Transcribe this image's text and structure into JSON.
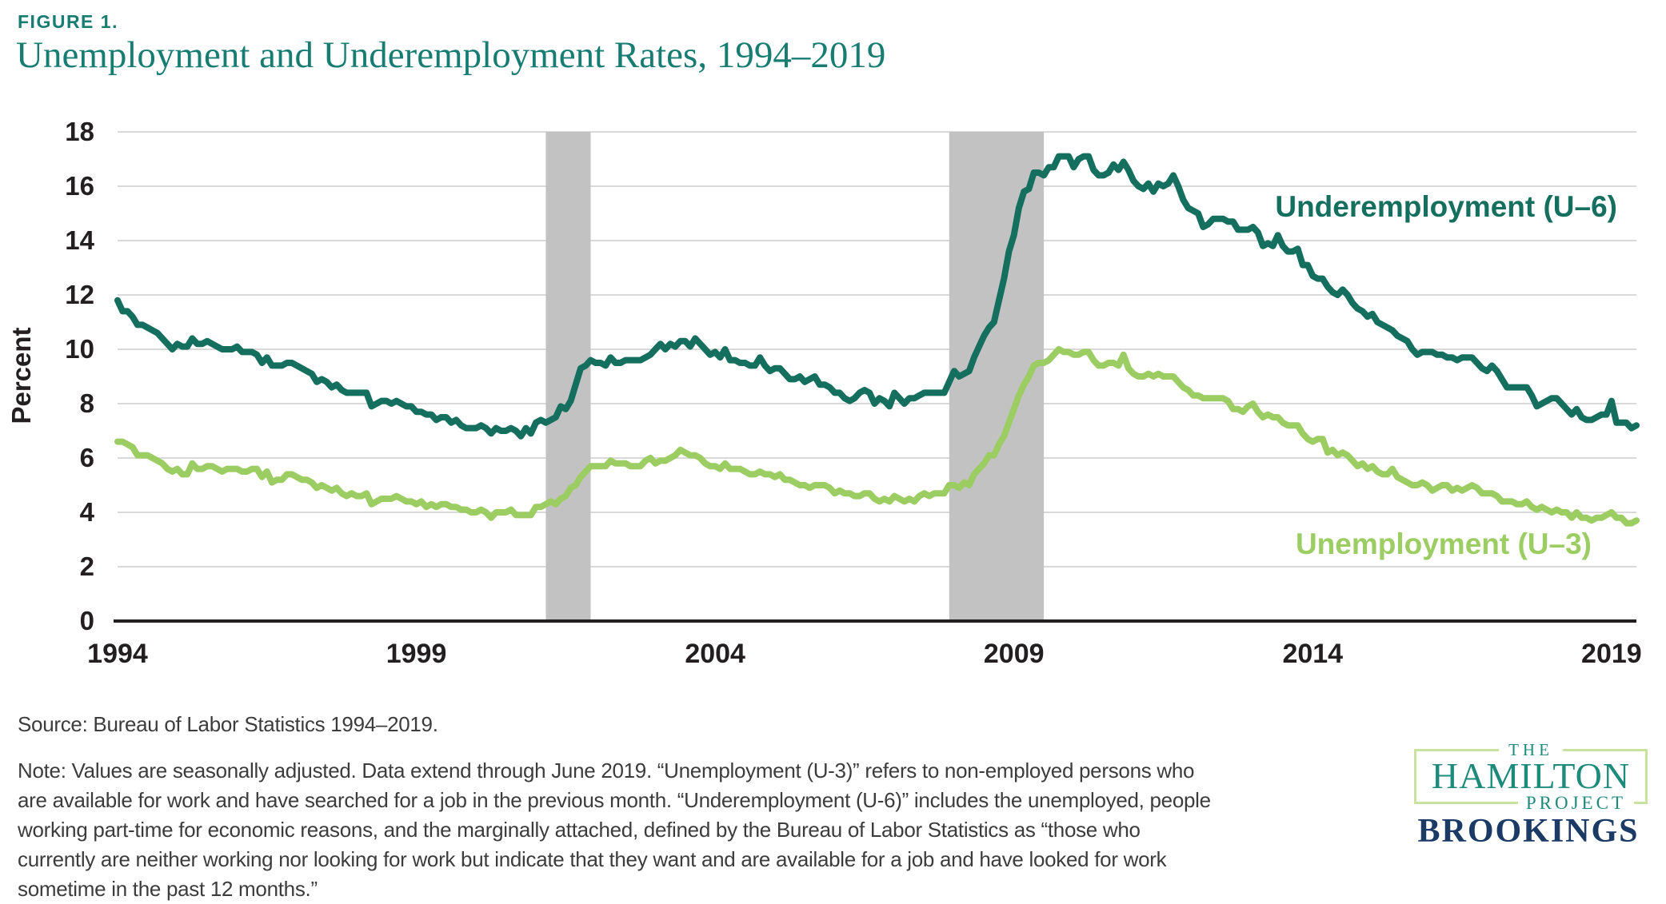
{
  "figure_label": "FIGURE 1.",
  "title": "Unemployment and Underemployment Rates, 1994–2019",
  "chart_data": {
    "type": "line",
    "title": "Unemployment and Underemployment Rates, 1994–2019",
    "xlabel": "",
    "ylabel": "Percent",
    "ylim": [
      0,
      18
    ],
    "yticks": [
      0,
      2,
      4,
      6,
      8,
      10,
      12,
      14,
      16,
      18
    ],
    "xticks": [
      1994,
      1999,
      2004,
      2009,
      2014,
      2019
    ],
    "x_unit": "monthly",
    "x_range": [
      "1994-01",
      "2019-06"
    ],
    "grid": "horizontal",
    "legend_position": "inline-labels-right",
    "recession_shading": true,
    "recessions": [
      {
        "start": "2001-03",
        "end": "2001-11"
      },
      {
        "start": "2007-12",
        "end": "2009-06"
      }
    ],
    "series": [
      {
        "name": "Underemployment (U–6)",
        "color": "#156f5e",
        "values": [
          11.8,
          11.4,
          11.4,
          11.2,
          10.9,
          10.9,
          10.8,
          10.7,
          10.6,
          10.4,
          10.2,
          10.0,
          10.2,
          10.1,
          10.1,
          10.4,
          10.2,
          10.2,
          10.3,
          10.2,
          10.1,
          10.0,
          10.0,
          10.0,
          10.1,
          9.9,
          9.9,
          9.9,
          9.8,
          9.5,
          9.7,
          9.4,
          9.4,
          9.4,
          9.5,
          9.5,
          9.4,
          9.3,
          9.2,
          9.1,
          8.8,
          8.9,
          8.8,
          8.6,
          8.7,
          8.5,
          8.4,
          8.4,
          8.4,
          8.4,
          8.4,
          7.9,
          8.0,
          8.1,
          8.1,
          8.0,
          8.1,
          8.0,
          7.9,
          7.9,
          7.7,
          7.7,
          7.6,
          7.6,
          7.4,
          7.5,
          7.5,
          7.3,
          7.4,
          7.2,
          7.1,
          7.1,
          7.1,
          7.2,
          7.1,
          6.9,
          7.1,
          7.0,
          7.0,
          7.1,
          7.0,
          6.8,
          7.1,
          6.9,
          7.3,
          7.4,
          7.3,
          7.4,
          7.5,
          7.9,
          7.8,
          8.1,
          8.7,
          9.3,
          9.4,
          9.6,
          9.5,
          9.5,
          9.4,
          9.7,
          9.5,
          9.5,
          9.6,
          9.6,
          9.6,
          9.6,
          9.7,
          9.8,
          10.0,
          10.2,
          10.0,
          10.2,
          10.1,
          10.3,
          10.3,
          10.1,
          10.4,
          10.2,
          10.0,
          9.8,
          9.9,
          9.7,
          10.0,
          9.6,
          9.6,
          9.5,
          9.5,
          9.4,
          9.4,
          9.7,
          9.4,
          9.2,
          9.3,
          9.3,
          9.1,
          8.9,
          8.9,
          9.0,
          8.8,
          8.9,
          9.0,
          8.7,
          8.7,
          8.6,
          8.4,
          8.4,
          8.2,
          8.1,
          8.2,
          8.4,
          8.5,
          8.4,
          8.0,
          8.2,
          8.1,
          7.9,
          8.4,
          8.2,
          8.0,
          8.2,
          8.2,
          8.3,
          8.4,
          8.4,
          8.4,
          8.4,
          8.4,
          8.8,
          9.2,
          9.0,
          9.1,
          9.2,
          9.7,
          10.1,
          10.5,
          10.8,
          11.0,
          11.8,
          12.6,
          13.6,
          14.2,
          15.2,
          15.8,
          15.9,
          16.5,
          16.5,
          16.4,
          16.7,
          16.7,
          17.1,
          17.1,
          17.1,
          16.7,
          17.0,
          17.1,
          17.1,
          16.6,
          16.4,
          16.4,
          16.5,
          16.8,
          16.6,
          16.9,
          16.6,
          16.2,
          16.0,
          15.9,
          16.1,
          15.8,
          16.1,
          16.0,
          16.1,
          16.4,
          16.0,
          15.5,
          15.2,
          15.1,
          15.0,
          14.5,
          14.6,
          14.8,
          14.8,
          14.8,
          14.7,
          14.7,
          14.4,
          14.4,
          14.4,
          14.5,
          14.3,
          13.8,
          13.9,
          13.8,
          14.2,
          13.8,
          13.6,
          13.6,
          13.7,
          13.1,
          13.1,
          12.7,
          12.6,
          12.6,
          12.3,
          12.1,
          12.0,
          12.2,
          12.0,
          11.7,
          11.5,
          11.4,
          11.2,
          11.3,
          11.0,
          10.9,
          10.8,
          10.7,
          10.5,
          10.4,
          10.3,
          10.0,
          9.8,
          9.9,
          9.9,
          9.9,
          9.8,
          9.8,
          9.7,
          9.7,
          9.6,
          9.7,
          9.7,
          9.7,
          9.5,
          9.3,
          9.2,
          9.4,
          9.2,
          8.9,
          8.6,
          8.6,
          8.6,
          8.6,
          8.6,
          8.3,
          7.9,
          8.0,
          8.1,
          8.2,
          8.2,
          8.0,
          7.8,
          7.6,
          7.8,
          7.5,
          7.4,
          7.4,
          7.5,
          7.6,
          7.6,
          8.1,
          7.3,
          7.3,
          7.3,
          7.1,
          7.2
        ]
      },
      {
        "name": "Unemployment (U–3)",
        "color": "#9ccd62",
        "values": [
          6.6,
          6.6,
          6.5,
          6.4,
          6.1,
          6.1,
          6.1,
          6.0,
          5.9,
          5.8,
          5.6,
          5.5,
          5.6,
          5.4,
          5.4,
          5.8,
          5.6,
          5.6,
          5.7,
          5.7,
          5.6,
          5.5,
          5.6,
          5.6,
          5.6,
          5.5,
          5.5,
          5.6,
          5.6,
          5.3,
          5.5,
          5.1,
          5.2,
          5.2,
          5.4,
          5.4,
          5.3,
          5.2,
          5.2,
          5.1,
          4.9,
          5.0,
          4.9,
          4.8,
          4.9,
          4.7,
          4.6,
          4.7,
          4.6,
          4.6,
          4.7,
          4.3,
          4.4,
          4.5,
          4.5,
          4.5,
          4.6,
          4.5,
          4.4,
          4.4,
          4.3,
          4.4,
          4.2,
          4.3,
          4.2,
          4.3,
          4.3,
          4.2,
          4.2,
          4.1,
          4.1,
          4.0,
          4.0,
          4.1,
          4.0,
          3.8,
          4.0,
          4.0,
          4.0,
          4.1,
          3.9,
          3.9,
          3.9,
          3.9,
          4.2,
          4.2,
          4.3,
          4.4,
          4.3,
          4.5,
          4.6,
          4.9,
          5.0,
          5.3,
          5.5,
          5.7,
          5.7,
          5.7,
          5.7,
          5.9,
          5.8,
          5.8,
          5.8,
          5.7,
          5.7,
          5.7,
          5.9,
          6.0,
          5.8,
          5.9,
          5.9,
          6.0,
          6.1,
          6.3,
          6.2,
          6.1,
          6.1,
          6.0,
          5.8,
          5.7,
          5.7,
          5.6,
          5.8,
          5.6,
          5.6,
          5.6,
          5.5,
          5.4,
          5.4,
          5.5,
          5.4,
          5.4,
          5.3,
          5.4,
          5.2,
          5.2,
          5.1,
          5.0,
          5.0,
          4.9,
          5.0,
          5.0,
          5.0,
          4.9,
          4.7,
          4.8,
          4.7,
          4.7,
          4.6,
          4.6,
          4.7,
          4.7,
          4.5,
          4.4,
          4.5,
          4.4,
          4.6,
          4.5,
          4.4,
          4.5,
          4.4,
          4.6,
          4.7,
          4.6,
          4.7,
          4.7,
          4.7,
          5.0,
          5.0,
          4.9,
          5.1,
          5.0,
          5.4,
          5.6,
          5.8,
          6.1,
          6.1,
          6.5,
          6.8,
          7.3,
          7.8,
          8.3,
          8.7,
          9.0,
          9.4,
          9.5,
          9.5,
          9.6,
          9.8,
          10.0,
          9.9,
          9.9,
          9.8,
          9.8,
          9.9,
          9.9,
          9.6,
          9.4,
          9.4,
          9.5,
          9.5,
          9.4,
          9.8,
          9.3,
          9.1,
          9.0,
          9.0,
          9.1,
          9.0,
          9.1,
          9.0,
          9.0,
          9.0,
          8.8,
          8.6,
          8.5,
          8.3,
          8.3,
          8.2,
          8.2,
          8.2,
          8.2,
          8.2,
          8.1,
          7.8,
          7.8,
          7.7,
          7.9,
          8.0,
          7.7,
          7.5,
          7.6,
          7.5,
          7.5,
          7.3,
          7.2,
          7.2,
          7.2,
          6.9,
          6.7,
          6.6,
          6.7,
          6.7,
          6.2,
          6.3,
          6.1,
          6.2,
          6.1,
          5.9,
          5.7,
          5.8,
          5.6,
          5.7,
          5.5,
          5.4,
          5.4,
          5.6,
          5.3,
          5.2,
          5.1,
          5.0,
          5.0,
          5.1,
          5.0,
          4.8,
          4.9,
          5.0,
          5.0,
          4.8,
          4.9,
          4.8,
          4.9,
          5.0,
          4.9,
          4.7,
          4.7,
          4.7,
          4.6,
          4.4,
          4.4,
          4.4,
          4.3,
          4.3,
          4.4,
          4.2,
          4.1,
          4.2,
          4.1,
          4.0,
          4.1,
          4.0,
          4.0,
          3.8,
          4.0,
          3.8,
          3.8,
          3.7,
          3.8,
          3.8,
          3.9,
          4.0,
          3.8,
          3.8,
          3.6,
          3.6,
          3.7
        ]
      }
    ]
  },
  "footer": {
    "source": "Source: Bureau of Labor Statistics 1994–2019.",
    "note_lines": [
      "Note: Values are seasonally adjusted. Data extend through June 2019. “Unemployment (U-3)” refers to non-employed persons who",
      "are available for work and have searched for a job in the previous month. “Underemployment (U-6)” includes the unemployed, people",
      "working part-time for economic reasons, and the marginally attached, defined by the Bureau of Labor Statistics as “those who",
      "currently are neither working nor looking for work but indicate that they want and are available for a job and have looked for work",
      "sometime in the past 12 months.”"
    ]
  },
  "logos": {
    "hamilton_the": "THE",
    "hamilton_name": "HAMILTON",
    "hamilton_project": "PROJECT",
    "brookings": "BROOKINGS"
  },
  "colors": {
    "accent_teal": "#177d72",
    "u6_line": "#156f5e",
    "u3_line": "#9ccd62",
    "grid": "#d9d9d9",
    "recession_band": "#c2c2c2",
    "axis_line": "#231f20",
    "note_text": "#3c3c3c",
    "hamilton_teal": "#1e8a7c",
    "hamilton_border": "#c9e2a0",
    "brookings_navy": "#1b3a66"
  }
}
